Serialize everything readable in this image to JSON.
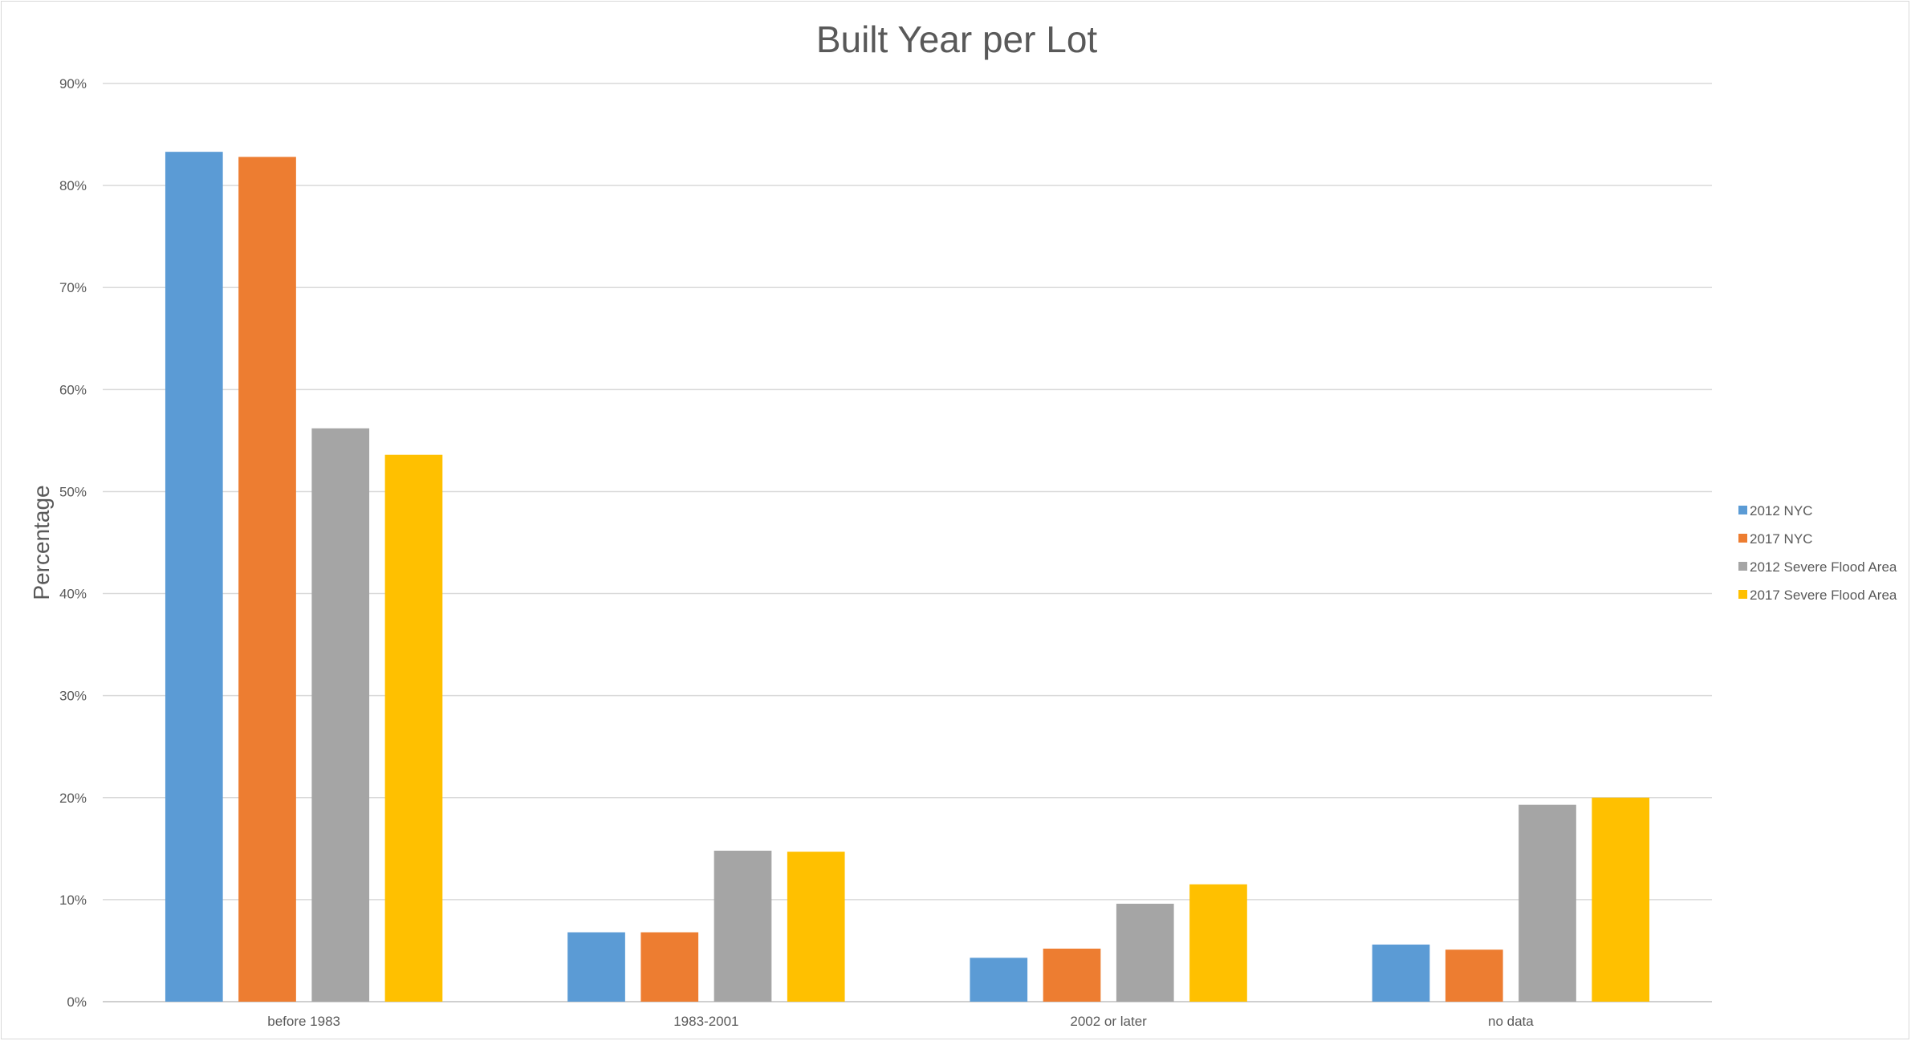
{
  "chart_data": {
    "type": "bar",
    "title": "Built Year per Lot",
    "xlabel": "",
    "ylabel": "Percentage",
    "categories": [
      "before 1983",
      "1983-2001",
      "2002 or later",
      "no data"
    ],
    "series": [
      {
        "name": "2012 NYC",
        "color": "#5b9bd5",
        "values": [
          83.3,
          6.8,
          4.3,
          5.6
        ]
      },
      {
        "name": "2017 NYC",
        "color": "#ed7d31",
        "values": [
          82.8,
          6.8,
          5.2,
          5.1
        ]
      },
      {
        "name": "2012 Severe Flood Area",
        "color": "#a5a5a5",
        "values": [
          56.2,
          14.8,
          9.6,
          19.3
        ]
      },
      {
        "name": "2017 Severe Flood Area",
        "color": "#ffc000",
        "values": [
          53.6,
          14.7,
          11.5,
          20.0
        ]
      }
    ],
    "ylim": [
      0,
      90
    ],
    "yticks": [
      "0%",
      "10%",
      "20%",
      "30%",
      "40%",
      "50%",
      "60%",
      "70%",
      "80%",
      "90%"
    ],
    "grid": true,
    "legend_position": "right"
  }
}
